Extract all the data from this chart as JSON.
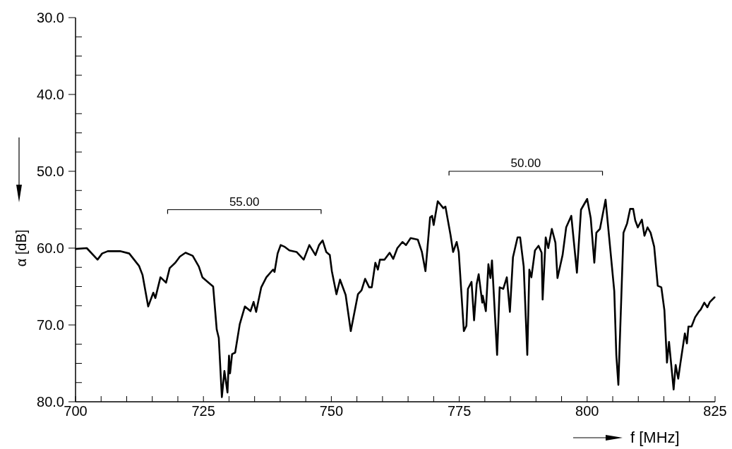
{
  "chart_data": {
    "type": "line",
    "xlabel": "f [MHz]",
    "ylabel": "α [dB]",
    "xlim": [
      700,
      825
    ],
    "ylim": [
      80,
      30
    ],
    "xticks": [
      700,
      {
        "value": 705,
        "label": null
      },
      {
        "value": 710,
        "label": null
      },
      {
        "value": 715,
        "label": null
      },
      {
        "value": 720,
        "label": null
      },
      725,
      {
        "value": 730,
        "label": null
      },
      {
        "value": 735,
        "label": null
      },
      {
        "value": 740,
        "label": null
      },
      {
        "value": 745,
        "label": null
      },
      750,
      {
        "value": 755,
        "label": null
      },
      {
        "value": 760,
        "label": null
      },
      {
        "value": 765,
        "label": null
      },
      {
        "value": 770,
        "label": null
      },
      775,
      {
        "value": 780,
        "label": null
      },
      {
        "value": 785,
        "label": null
      },
      {
        "value": 790,
        "label": null
      },
      {
        "value": 795,
        "label": null
      },
      800,
      {
        "value": 805,
        "label": null
      },
      {
        "value": 810,
        "label": null
      },
      {
        "value": 815,
        "label": null
      },
      {
        "value": 820,
        "label": null
      },
      825
    ],
    "yticks": [
      {
        "value": 30,
        "label": "30.0"
      },
      {
        "value": 32.5,
        "label": null
      },
      {
        "value": 35,
        "label": null
      },
      {
        "value": 37.5,
        "label": null
      },
      {
        "value": 40,
        "label": "40.0"
      },
      {
        "value": 42.5,
        "label": null
      },
      {
        "value": 45,
        "label": null
      },
      {
        "value": 47.5,
        "label": null
      },
      {
        "value": 50,
        "label": "50.0"
      },
      {
        "value": 52.5,
        "label": null
      },
      {
        "value": 55,
        "label": null
      },
      {
        "value": 57.5,
        "label": null
      },
      {
        "value": 60,
        "label": "60.0"
      },
      {
        "value": 62.5,
        "label": null
      },
      {
        "value": 65,
        "label": null
      },
      {
        "value": 67.5,
        "label": null
      },
      {
        "value": 70,
        "label": "70.0"
      },
      {
        "value": 72.5,
        "label": null
      },
      {
        "value": 75,
        "label": null
      },
      {
        "value": 77.5,
        "label": null
      },
      {
        "value": 80,
        "label": "80.0"
      }
    ],
    "grid": false,
    "marker": "none",
    "line_style": "solid",
    "annotations": [
      {
        "text": "55.00",
        "x": 733,
        "y": 55
      },
      {
        "text": "50.00",
        "x": 788,
        "y": 50
      }
    ],
    "series": [
      {
        "color": "#000000",
        "x": [
          718,
          718,
          748,
          748
        ],
        "values": [
          55.5,
          55,
          55,
          55.5
        ]
      },
      {
        "color": "#000000",
        "x": [
          773,
          773,
          803,
          803
        ],
        "values": [
          50.5,
          50,
          50,
          50.5
        ]
      },
      {
        "color": "#000000",
        "x": [
          700.1,
          702.2,
          704.3,
          705.2,
          706.3,
          708.7,
          710.5,
          712.4,
          713.1,
          714.2,
          715.2,
          715.6,
          716.6,
          717.7,
          718.4,
          719.5,
          720.4,
          721.5,
          722.9,
          724.1,
          724.8,
          726.2,
          726.9,
          727.6,
          728.0,
          728.6,
          729.1,
          729.7,
          730.0,
          730.2,
          730.6,
          731.2,
          732.1,
          733.1,
          734.2,
          734.8,
          735.3,
          736.3,
          737.3,
          738.6,
          738.9,
          739.5,
          740.1,
          740.8,
          741.8,
          743.2,
          744.6,
          745.7,
          746.9,
          747.6,
          748.3,
          749.0,
          749.7,
          750.1,
          751.0,
          751.7,
          752.8,
          753.8,
          755.2,
          755.9,
          756.6,
          757.4,
          757.9,
          758.6,
          759.1,
          759.5,
          760.4,
          761.4,
          762.1,
          762.9,
          763.9,
          764.6,
          765.5,
          766.9,
          767.7,
          768.4,
          769.3,
          769.7,
          770.0,
          770.8,
          771.9,
          772.3,
          773.3,
          773.8,
          774.5,
          774.9,
          775.9,
          776.4,
          776.7,
          777.4,
          777.9,
          778.4,
          778.8,
          779.5,
          779.6,
          780.2,
          780.7,
          781.1,
          781.4,
          782.4,
          782.9,
          783.6,
          784.3,
          784.9,
          785.5,
          786.4,
          786.9,
          787.6,
          788.3,
          788.7,
          789.1,
          789.8,
          790.5,
          791.1,
          791.3,
          791.9,
          792.4,
          793.1,
          793.8,
          794.2,
          795.2,
          795.9,
          796.9,
          798.0,
          798.8,
          800.0,
          800.7,
          801.4,
          801.8,
          802.5,
          803.6,
          804.3,
          805.3,
          805.7,
          806.1,
          807.1,
          807.8,
          808.4,
          809.0,
          809.4,
          809.9,
          810.7,
          811.2,
          811.8,
          812.4,
          813.1,
          813.8,
          814.5,
          815.1,
          815.6,
          816.0,
          816.9,
          817.3,
          817.8,
          818.2,
          819.1,
          819.5,
          819.8,
          820.4,
          821.1,
          821.8,
          822.2,
          822.9,
          823.5,
          824.0,
          824.9
        ],
        "values": [
          60.1,
          60.0,
          61.5,
          60.7,
          60.4,
          60.4,
          60.7,
          62.3,
          63.5,
          67.6,
          65.8,
          66.5,
          63.8,
          64.5,
          62.6,
          61.9,
          61.1,
          60.6,
          61.0,
          62.4,
          63.8,
          64.6,
          65.0,
          70.6,
          71.7,
          79.4,
          76.0,
          78.8,
          74.0,
          76.3,
          73.8,
          73.6,
          69.9,
          67.6,
          68.2,
          67.0,
          68.3,
          65.1,
          63.8,
          62.8,
          63.1,
          60.7,
          59.6,
          59.8,
          60.3,
          60.5,
          61.5,
          59.6,
          60.9,
          59.6,
          59.0,
          60.5,
          60.9,
          63.0,
          66.0,
          64.1,
          66.1,
          70.8,
          66.0,
          65.5,
          64.0,
          65.1,
          65.1,
          61.9,
          62.8,
          61.5,
          61.5,
          60.6,
          61.4,
          60.0,
          59.2,
          59.6,
          58.7,
          58.9,
          60.5,
          63.0,
          56.0,
          55.8,
          57.0,
          53.9,
          54.8,
          54.6,
          58.3,
          60.5,
          59.2,
          60.5,
          70.8,
          70.1,
          65.3,
          64.4,
          69.4,
          64.7,
          63.4,
          67.1,
          66.2,
          68.2,
          62.1,
          63.9,
          61.6,
          73.9,
          65.1,
          65.3,
          63.8,
          68.3,
          61.2,
          58.6,
          58.6,
          62.4,
          73.9,
          62.8,
          63.8,
          60.3,
          59.7,
          60.6,
          66.7,
          58.6,
          60.0,
          57.5,
          59.3,
          63.9,
          60.9,
          57.3,
          55.8,
          63.2,
          55.0,
          53.6,
          56.1,
          61.9,
          58.0,
          57.5,
          53.7,
          58.6,
          65.6,
          73.9,
          77.8,
          58.0,
          56.8,
          54.9,
          54.9,
          56.4,
          57.3,
          56.3,
          58.4,
          57.3,
          58.0,
          59.8,
          64.9,
          65.1,
          68.1,
          74.9,
          72.2,
          78.4,
          75.2,
          77.0,
          75.1,
          71.1,
          72.4,
          70.2,
          70.2,
          69.0,
          68.3,
          68.0,
          67.1,
          67.7,
          67.0,
          66.4
        ]
      }
    ]
  }
}
